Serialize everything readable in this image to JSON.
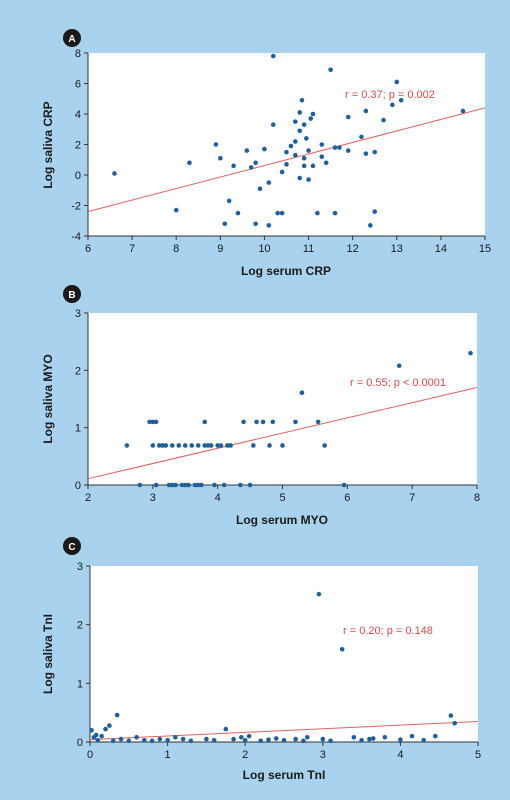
{
  "colors": {
    "background": "#a9d2ef",
    "plot_area": "#ffffff",
    "points": "#1f5f9a",
    "fit_line": "#e06060",
    "stat_text": "#d24b4b",
    "badge": "#1a1a1a"
  },
  "chart_data": [
    {
      "panel": "A",
      "type": "scatter",
      "xlabel": "Log serum CRP",
      "ylabel": "Log saliva CRP",
      "xlim": [
        6,
        15
      ],
      "ylim": [
        -4,
        8
      ],
      "xticks": [
        6,
        7,
        8,
        9,
        10,
        11,
        12,
        13,
        14,
        15
      ],
      "yticks": [
        -4,
        -2,
        0,
        2,
        4,
        6,
        8
      ],
      "annotation": "r = 0.37; p = 0.002",
      "grid": false,
      "fit_line": [
        [
          6,
          -2.4
        ],
        [
          15,
          4.4
        ]
      ],
      "points": [
        [
          6.6,
          0.1
        ],
        [
          8.0,
          -2.3
        ],
        [
          8.3,
          0.8
        ],
        [
          8.9,
          2.0
        ],
        [
          9.0,
          1.1
        ],
        [
          9.1,
          -3.2
        ],
        [
          9.2,
          -1.7
        ],
        [
          9.3,
          0.6
        ],
        [
          9.4,
          -2.5
        ],
        [
          9.6,
          1.6
        ],
        [
          9.7,
          0.5
        ],
        [
          9.8,
          0.8
        ],
        [
          9.8,
          -3.2
        ],
        [
          10.0,
          1.7
        ],
        [
          9.9,
          -0.9
        ],
        [
          10.1,
          -0.5
        ],
        [
          10.1,
          -3.3
        ],
        [
          10.2,
          3.3
        ],
        [
          10.3,
          -2.5
        ],
        [
          10.4,
          -2.5
        ],
        [
          10.5,
          0.7
        ],
        [
          10.5,
          1.5
        ],
        [
          10.6,
          1.9
        ],
        [
          10.7,
          2.2
        ],
        [
          10.7,
          3.5
        ],
        [
          10.8,
          4.1
        ],
        [
          10.8,
          2.9
        ],
        [
          10.85,
          4.9
        ],
        [
          10.9,
          3.3
        ],
        [
          10.9,
          1.1
        ],
        [
          10.9,
          0.6
        ],
        [
          10.95,
          2.4
        ],
        [
          11.0,
          1.6
        ],
        [
          11.0,
          -0.3
        ],
        [
          11.05,
          3.7
        ],
        [
          11.1,
          4.0
        ],
        [
          11.1,
          0.6
        ],
        [
          10.8,
          -0.2
        ],
        [
          11.2,
          -2.5
        ],
        [
          11.3,
          2.0
        ],
        [
          11.3,
          1.2
        ],
        [
          11.5,
          6.9
        ],
        [
          11.6,
          -2.5
        ],
        [
          11.6,
          1.8
        ],
        [
          11.7,
          1.8
        ],
        [
          11.9,
          1.6
        ],
        [
          11.9,
          3.8
        ],
        [
          12.2,
          2.5
        ],
        [
          12.3,
          1.4
        ],
        [
          12.4,
          -3.3
        ],
        [
          12.5,
          -2.4
        ],
        [
          12.5,
          1.5
        ],
        [
          12.7,
          3.6
        ],
        [
          12.9,
          4.6
        ],
        [
          13.0,
          6.1
        ],
        [
          13.1,
          4.9
        ],
        [
          14.5,
          4.2
        ],
        [
          10.2,
          7.8
        ],
        [
          12.3,
          4.2
        ],
        [
          10.7,
          1.3
        ],
        [
          11.4,
          0.8
        ],
        [
          10.4,
          0.2
        ]
      ]
    },
    {
      "panel": "B",
      "type": "scatter",
      "xlabel": "Log serum MYO",
      "ylabel": "Log saliva MYO",
      "xlim": [
        2,
        8
      ],
      "ylim": [
        0,
        3
      ],
      "xticks": [
        2,
        3,
        4,
        5,
        6,
        7,
        8
      ],
      "yticks": [
        0,
        1,
        2,
        3
      ],
      "annotation": "r = 0.55; p < 0.0001",
      "grid": false,
      "fit_line": [
        [
          2,
          0.11
        ],
        [
          8,
          1.7
        ]
      ],
      "points": [
        [
          2.6,
          0.69
        ],
        [
          2.8,
          0.0
        ],
        [
          2.95,
          1.1
        ],
        [
          3.0,
          1.1
        ],
        [
          3.0,
          0.69
        ],
        [
          3.05,
          1.1
        ],
        [
          3.1,
          0.69
        ],
        [
          3.2,
          0.69
        ],
        [
          3.25,
          0.0
        ],
        [
          3.3,
          0.69
        ],
        [
          3.35,
          0.0
        ],
        [
          3.4,
          0.69
        ],
        [
          3.45,
          0.0
        ],
        [
          3.5,
          0.69
        ],
        [
          3.55,
          0.0
        ],
        [
          3.6,
          0.69
        ],
        [
          3.65,
          0.0
        ],
        [
          3.7,
          0.69
        ],
        [
          3.75,
          0.0
        ],
        [
          3.8,
          0.69
        ],
        [
          3.8,
          1.1
        ],
        [
          3.85,
          0.69
        ],
        [
          3.9,
          0.69
        ],
        [
          3.95,
          0.0
        ],
        [
          4.0,
          0.69
        ],
        [
          4.05,
          0.69
        ],
        [
          4.1,
          0.0
        ],
        [
          4.15,
          0.69
        ],
        [
          4.2,
          0.69
        ],
        [
          4.35,
          0.0
        ],
        [
          4.4,
          1.1
        ],
        [
          4.5,
          0.0
        ],
        [
          4.55,
          0.69
        ],
        [
          4.7,
          1.1
        ],
        [
          4.8,
          0.69
        ],
        [
          4.85,
          1.1
        ],
        [
          5.0,
          0.69
        ],
        [
          5.2,
          1.1
        ],
        [
          5.3,
          1.61
        ],
        [
          5.55,
          1.1
        ],
        [
          5.65,
          0.69
        ],
        [
          5.95,
          0.0
        ],
        [
          6.8,
          2.08
        ],
        [
          7.9,
          2.3
        ],
        [
          3.05,
          0.0
        ],
        [
          3.15,
          0.69
        ],
        [
          3.5,
          0.0
        ],
        [
          3.7,
          0.0
        ],
        [
          4.6,
          1.1
        ],
        [
          3.3,
          0.0
        ]
      ]
    },
    {
      "panel": "C",
      "type": "scatter",
      "xlabel": "Log serum TnI",
      "ylabel": "Log saliva TnI",
      "xlim": [
        0,
        5
      ],
      "ylim": [
        0,
        3
      ],
      "xticks": [
        0,
        1,
        2,
        3,
        4,
        5
      ],
      "yticks": [
        0,
        1,
        2,
        3
      ],
      "annotation": "r = 0.20; p = 0.148",
      "grid": false,
      "fit_line": [
        [
          0,
          0.04
        ],
        [
          5,
          0.35
        ]
      ],
      "points": [
        [
          0.02,
          0.2
        ],
        [
          0.05,
          0.08
        ],
        [
          0.1,
          0.03
        ],
        [
          0.15,
          0.1
        ],
        [
          0.2,
          0.22
        ],
        [
          0.25,
          0.28
        ],
        [
          0.3,
          0.02
        ],
        [
          0.35,
          0.46
        ],
        [
          0.4,
          0.05
        ],
        [
          0.5,
          0.02
        ],
        [
          0.6,
          0.08
        ],
        [
          0.7,
          0.03
        ],
        [
          0.8,
          0.02
        ],
        [
          0.9,
          0.05
        ],
        [
          1.0,
          0.03
        ],
        [
          1.1,
          0.08
        ],
        [
          1.3,
          0.02
        ],
        [
          1.5,
          0.05
        ],
        [
          1.6,
          0.03
        ],
        [
          1.75,
          0.22
        ],
        [
          1.85,
          0.05
        ],
        [
          1.95,
          0.08
        ],
        [
          2.0,
          0.03
        ],
        [
          2.05,
          0.1
        ],
        [
          2.2,
          0.02
        ],
        [
          2.4,
          0.06
        ],
        [
          2.5,
          0.03
        ],
        [
          2.65,
          0.05
        ],
        [
          2.75,
          0.02
        ],
        [
          2.8,
          0.08
        ],
        [
          2.95,
          2.52
        ],
        [
          3.0,
          0.05
        ],
        [
          3.1,
          0.02
        ],
        [
          3.25,
          1.58
        ],
        [
          3.4,
          0.08
        ],
        [
          3.5,
          0.03
        ],
        [
          3.6,
          0.05
        ],
        [
          3.8,
          0.08
        ],
        [
          4.0,
          0.04
        ],
        [
          4.15,
          0.1
        ],
        [
          4.3,
          0.03
        ],
        [
          4.45,
          0.1
        ],
        [
          4.65,
          0.45
        ],
        [
          4.7,
          0.32
        ],
        [
          0.08,
          0.12
        ],
        [
          1.2,
          0.05
        ],
        [
          2.3,
          0.04
        ],
        [
          3.65,
          0.06
        ]
      ]
    }
  ]
}
